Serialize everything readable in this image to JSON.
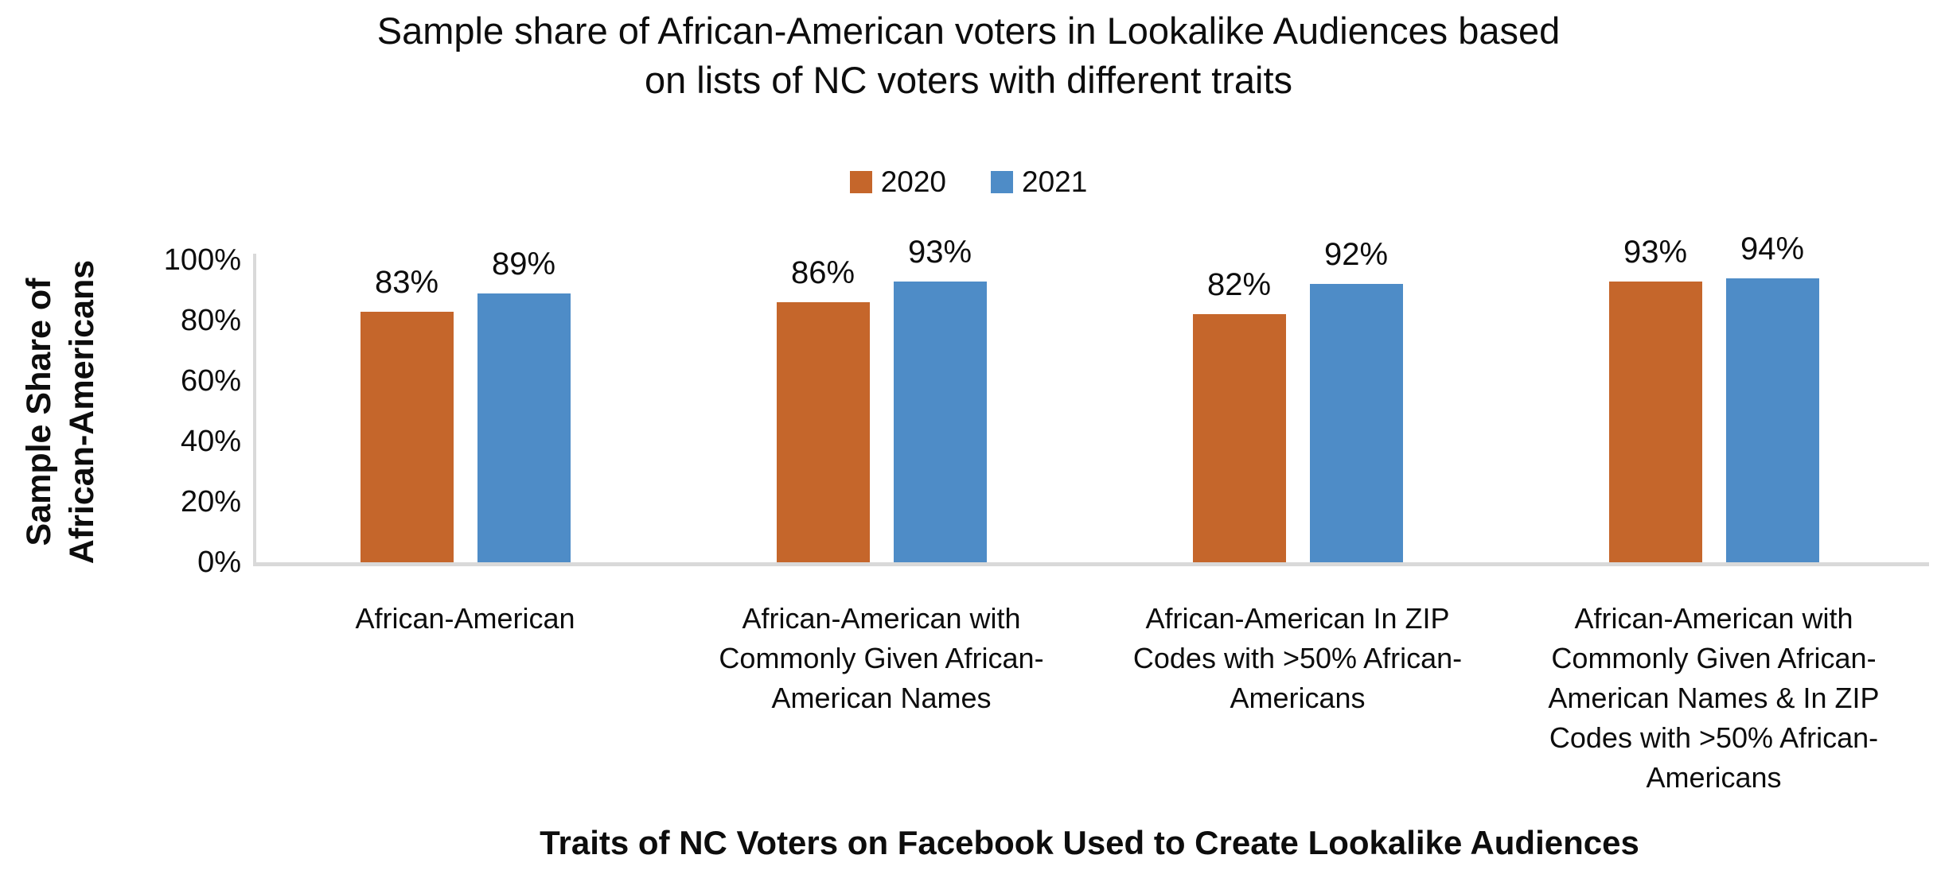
{
  "title_lines": [
    "Sample share of African-American voters in Lookalike Audiences based",
    "on lists of NC voters with different traits"
  ],
  "y_axis": {
    "title_lines": [
      "Sample Share of",
      "African-Americans"
    ],
    "ticks": [
      "0%",
      "20%",
      "40%",
      "60%",
      "80%",
      "100%"
    ]
  },
  "x_axis": {
    "title": "Traits of NC Voters on Facebook Used to Create Lookalike Audiences"
  },
  "legend": {
    "items": [
      {
        "label": "2020"
      },
      {
        "label": "2021"
      }
    ]
  },
  "colors": {
    "series_2020": "#C5662B",
    "series_2021": "#4E8CC7",
    "axis_line": "#D9D9D9",
    "text": "#0D0D0D"
  },
  "chart_data": {
    "type": "bar",
    "title": "Sample share of African-American voters in Lookalike Audiences based on lists of NC voters with different traits",
    "xlabel": "Traits of NC Voters on Facebook Used to Create Lookalike Audiences",
    "ylabel": "Sample Share of African-Americans",
    "categories": [
      "African-American",
      "African-American with Commonly Given African-American Names",
      "African-American In ZIP Codes with >50% African-Americans",
      "African-American with Commonly Given African-American Names & In ZIP Codes with >50% African-Americans"
    ],
    "series": [
      {
        "name": "2020",
        "color": "#C5662B",
        "values": [
          83,
          86,
          82,
          93
        ],
        "labels": [
          "83%",
          "86%",
          "82%",
          "93%"
        ]
      },
      {
        "name": "2021",
        "color": "#4E8CC7",
        "values": [
          89,
          93,
          92,
          94
        ],
        "labels": [
          "89%",
          "93%",
          "92%",
          "94%"
        ]
      }
    ],
    "ylim": [
      0,
      100
    ],
    "y_tick_step": 20,
    "grid": false,
    "legend_position": "top-center",
    "data_labels": true
  }
}
